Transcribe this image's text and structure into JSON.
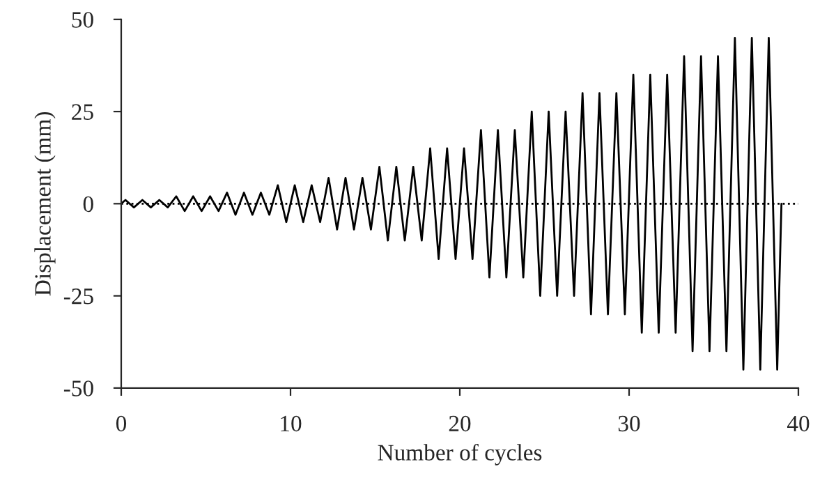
{
  "chart_data": {
    "type": "line",
    "xlabel": "Number of cycles",
    "ylabel": "Displacement (mm)",
    "x": [
      0,
      0.25,
      0.75,
      1.25,
      1.75,
      2.25,
      2.75,
      3.25,
      3.75,
      4.25,
      4.75,
      5.25,
      5.75,
      6.25,
      6.75,
      7.25,
      7.75,
      8.25,
      8.75,
      9.25,
      9.75,
      10.25,
      10.75,
      11.25,
      11.75,
      12.25,
      12.75,
      13.25,
      13.75,
      14.25,
      14.75,
      15.25,
      15.75,
      16.25,
      16.75,
      17.25,
      17.75,
      18.25,
      18.75,
      19.25,
      19.75,
      20.25,
      20.75,
      21.25,
      21.75,
      22.25,
      22.75,
      23.25,
      23.75,
      24.25,
      24.75,
      25.25,
      25.75,
      26.25,
      26.75,
      27.25,
      27.75,
      28.25,
      28.75,
      29.25,
      29.75,
      30.25,
      30.75,
      31.25,
      31.75,
      32.25,
      32.75,
      33.25,
      33.75,
      34.25,
      34.75,
      35.25,
      35.75,
      36.25,
      36.75,
      37.25,
      37.75,
      38.25,
      38.75,
      39
    ],
    "series": [
      {
        "color": "#000000",
        "values": [
          0,
          1,
          -1,
          1,
          -1,
          1,
          -1,
          2,
          -2,
          2,
          -2,
          2,
          -2,
          3,
          -3,
          3,
          -3,
          3,
          -3,
          5,
          -5,
          5,
          -5,
          5,
          -5,
          7,
          -7,
          7,
          -7,
          7,
          -7,
          10,
          -10,
          10,
          -10,
          10,
          -10,
          15,
          -15,
          15,
          -15,
          15,
          -15,
          20,
          -20,
          20,
          -20,
          20,
          -20,
          25,
          -25,
          25,
          -25,
          25,
          -25,
          30,
          -30,
          30,
          -30,
          30,
          -30,
          35,
          -35,
          35,
          -35,
          35,
          -35,
          40,
          -40,
          40,
          -40,
          40,
          -40,
          45,
          -45,
          45,
          -45,
          45,
          -45,
          0
        ]
      }
    ],
    "xlim": [
      0,
      40
    ],
    "xticks": [
      0,
      10,
      20,
      30,
      40
    ],
    "ylim": [
      -50,
      50
    ],
    "yticks": [
      -50,
      -25,
      0,
      25,
      50
    ],
    "ref_lines": [
      {
        "axis": "y",
        "value": 0,
        "color": "#000000",
        "line_style": "dotted"
      }
    ],
    "grid": false,
    "legend": false
  }
}
